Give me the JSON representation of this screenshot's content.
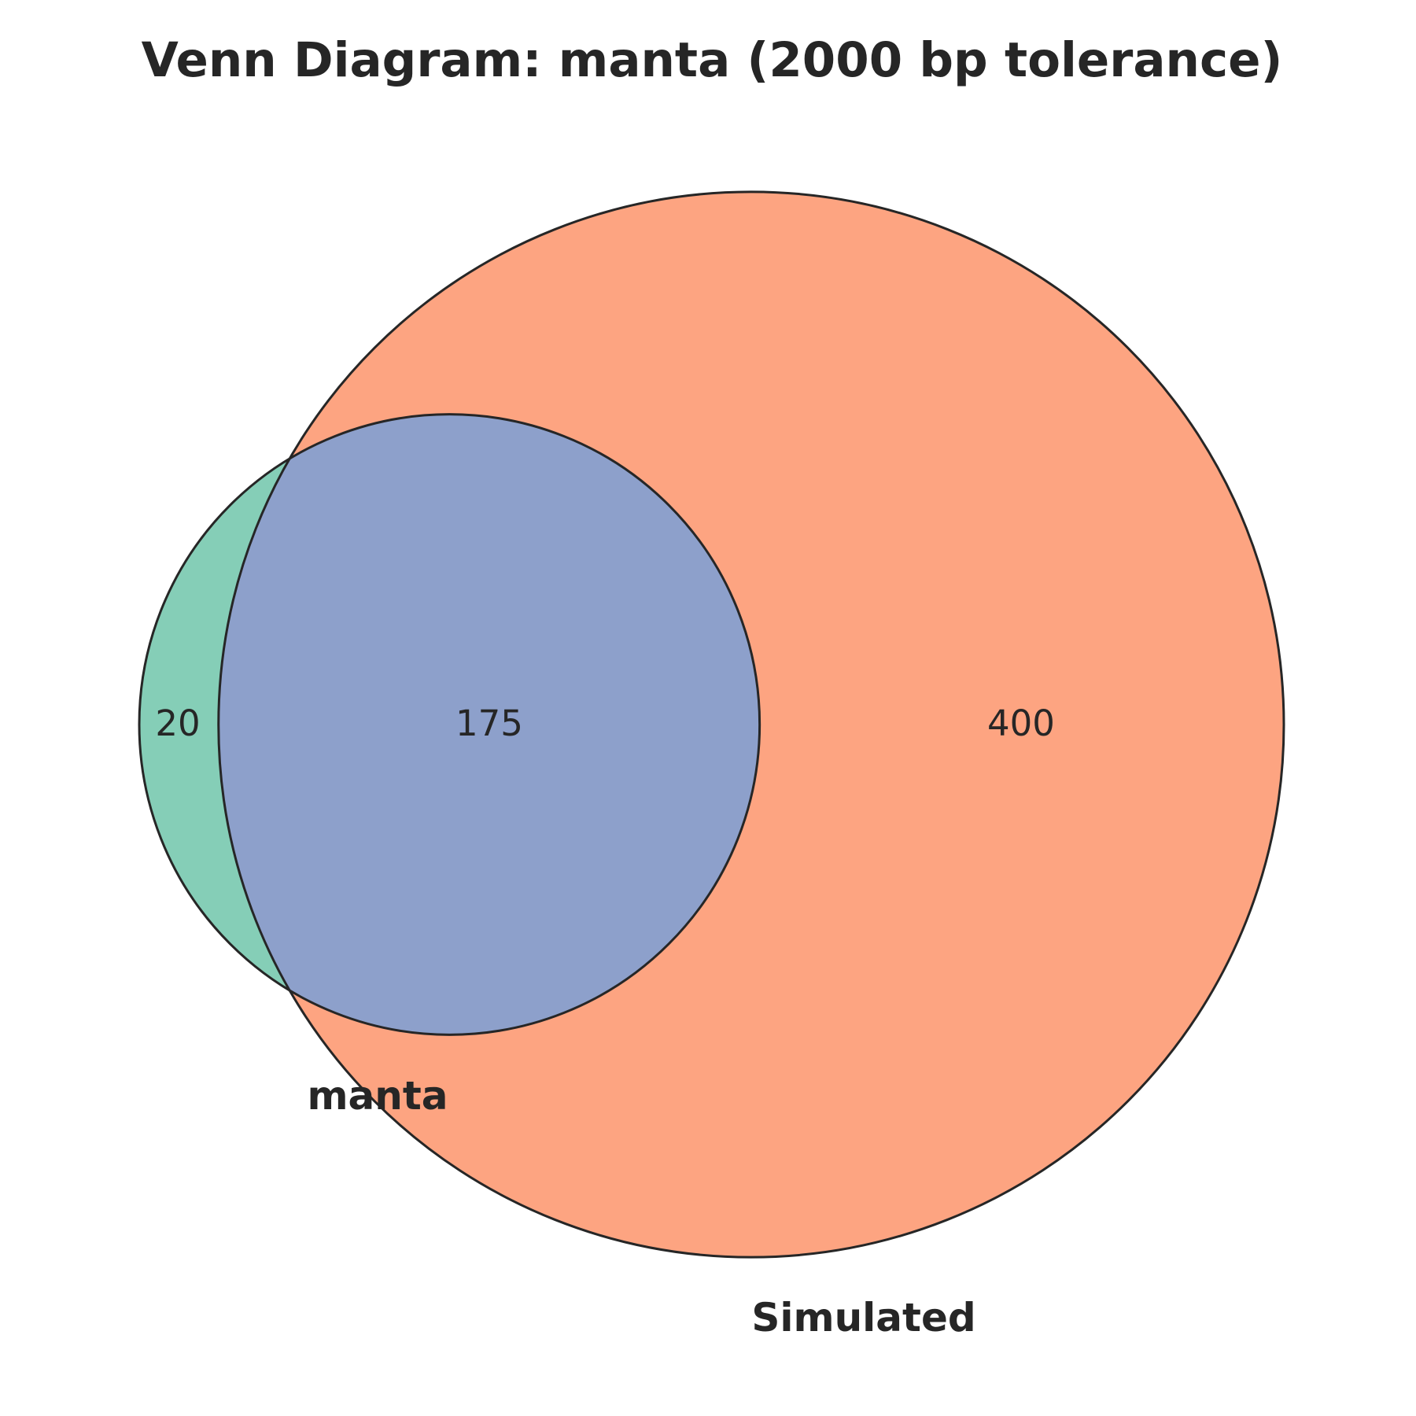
{
  "chart_data": {
    "type": "venn",
    "title": "Venn Diagram: manta (2000 bp tolerance)",
    "sets": [
      {
        "name": "manta",
        "color": "#66c2a5"
      },
      {
        "name": "Simulated",
        "color": "#fc8d62"
      }
    ],
    "intersection_color": "#8da0cb",
    "regions": {
      "manta_only": 20,
      "intersection": 175,
      "simulated_only": 400
    },
    "fill_opacity": 0.8,
    "edge_color": "#262626"
  }
}
